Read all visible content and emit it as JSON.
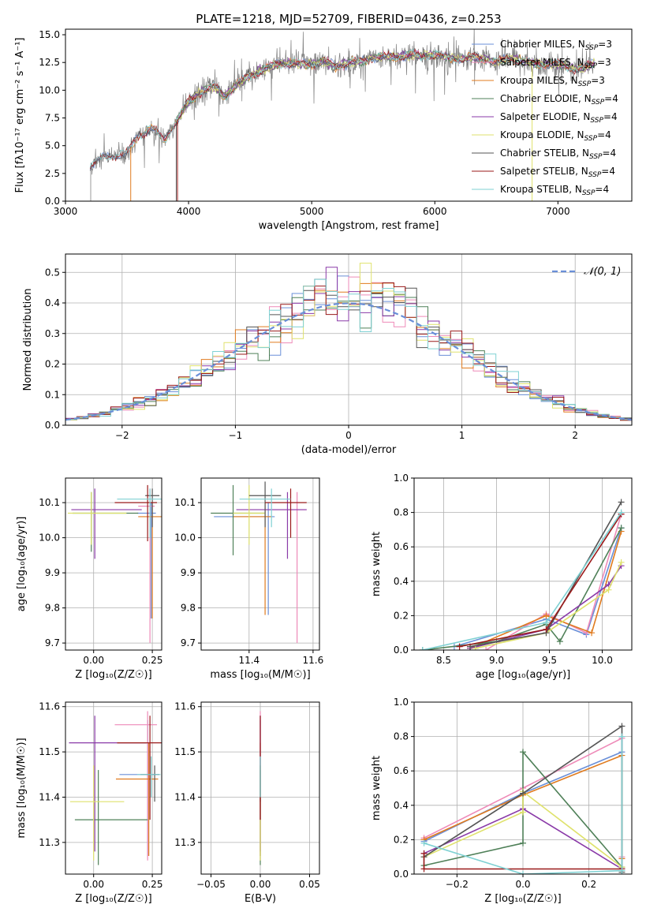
{
  "legend_spec": {
    "labels": [
      "Chabrier MILES",
      "Salpeter MILES",
      "Kroupa MILES",
      "Chabrier ELODIE",
      "Salpeter ELODIE",
      "Kroupa ELODIE",
      "Chabrier STELIB",
      "Salpeter STELIB",
      "Kroupa STELIB"
    ],
    "nssp": [
      "3",
      "3",
      "3",
      "4",
      "4",
      "4",
      "4",
      "4",
      "4"
    ],
    "prefix": "N",
    "sub": "SSP",
    "colors": [
      "#6a8fd8",
      "#ee8ab8",
      "#e07b1f",
      "#4f8058",
      "#8a3aa8",
      "#dfe26c",
      "#555555",
      "#9a1a1a",
      "#7fd1d3"
    ]
  },
  "chart_data": [
    {
      "id": "spectrum",
      "type": "line",
      "title": "PLATE=1218, MJD=52709, FIBERID=0436, z=0.253",
      "xlabel": "wavelength [Angstrom, rest frame]",
      "ylabel": "Flux [fλ10⁻¹⁷ erg cm⁻² s⁻¹ A⁻¹]",
      "xlim": [
        3000,
        7600
      ],
      "ylim": [
        0,
        15.5
      ],
      "xticks": [
        3000,
        4000,
        5000,
        6000,
        7000
      ],
      "yticks": [
        0.0,
        2.5,
        5.0,
        7.5,
        10.0,
        12.5,
        15.0
      ],
      "data_color": "#808080",
      "legend": "top-right",
      "continuum": [
        [
          3200,
          3.2
        ],
        [
          3300,
          3.9
        ],
        [
          3400,
          4.1
        ],
        [
          3500,
          4.3
        ],
        [
          3600,
          6.0
        ],
        [
          3700,
          6.6
        ],
        [
          3800,
          5.5
        ],
        [
          3900,
          7.2
        ],
        [
          4000,
          9.0
        ],
        [
          4100,
          9.8
        ],
        [
          4200,
          10.4
        ],
        [
          4300,
          9.4
        ],
        [
          4400,
          10.6
        ],
        [
          4500,
          11.3
        ],
        [
          4600,
          11.8
        ],
        [
          4700,
          12.3
        ],
        [
          4800,
          12.4
        ],
        [
          4900,
          12.4
        ],
        [
          5000,
          12.3
        ],
        [
          5100,
          12.6
        ],
        [
          5200,
          12.1
        ],
        [
          5300,
          12.5
        ],
        [
          5400,
          12.6
        ],
        [
          5500,
          12.9
        ],
        [
          5600,
          13.0
        ],
        [
          5700,
          13.0
        ],
        [
          5800,
          13.2
        ],
        [
          5900,
          13.1
        ],
        [
          6000,
          13.2
        ],
        [
          6100,
          13.0
        ],
        [
          6200,
          12.8
        ],
        [
          6300,
          13.0
        ],
        [
          6400,
          12.8
        ],
        [
          6500,
          12.5
        ],
        [
          6600,
          12.9
        ],
        [
          6700,
          12.6
        ],
        [
          6800,
          12.5
        ],
        [
          6900,
          12.3
        ],
        [
          7000,
          12.4
        ],
        [
          7100,
          12.0
        ],
        [
          7200,
          11.9
        ],
        [
          7300,
          12.4
        ]
      ]
    },
    {
      "id": "residuals",
      "type": "step",
      "xlabel": "(data-model)/error",
      "ylabel": "Normed distribution",
      "xlim": [
        -2.5,
        2.5
      ],
      "ylim": [
        0,
        0.56
      ],
      "xticks": [
        -2,
        -1,
        0,
        1,
        2
      ],
      "yticks": [
        0.0,
        0.1,
        0.2,
        0.3,
        0.4,
        0.5
      ],
      "grid": true,
      "legend": "top-right",
      "reference_label": "𝒩(0, 1)",
      "reference_color": "#6a8fd8",
      "bin_width": 0.1,
      "bin_start": -2.5
    },
    {
      "id": "z-age",
      "type": "errorbar",
      "xlabel": "Z [log₁₀(Z/Z☉)]",
      "ylabel": "age  [log₁₀(age/yr)]",
      "xlim": [
        -0.12,
        0.29
      ],
      "ylim": [
        9.68,
        10.17
      ],
      "xticks": [
        0.0,
        0.25
      ],
      "xticklabels": [
        "0.00",
        "0.25"
      ],
      "yticks": [
        9.7,
        9.8,
        9.9,
        10.0,
        10.1
      ],
      "grid": true,
      "points": [
        {
          "x": 0.245,
          "y": 10.07,
          "xerr": [
            0.06,
            0.02
          ],
          "yerr": [
            0.3,
            0.03
          ],
          "c": 0
        },
        {
          "x": 0.24,
          "y": 10.09,
          "xerr": [
            0.05,
            0.02
          ],
          "yerr": [
            0.39,
            0.05
          ],
          "c": 1
        },
        {
          "x": 0.25,
          "y": 10.06,
          "xerr": [
            0.06,
            0.04
          ],
          "yerr": [
            0.29,
            0.04
          ],
          "c": 2
        },
        {
          "x": -0.01,
          "y": 10.07,
          "xerr": [
            0.08,
            0.2
          ],
          "yerr": [
            0.11,
            0.06
          ],
          "c": 3
        },
        {
          "x": 0.005,
          "y": 10.08,
          "xerr": [
            0.1,
            0.2
          ],
          "yerr": [
            0.14,
            0.06
          ],
          "c": 4
        },
        {
          "x": -0.01,
          "y": 10.07,
          "xerr": [
            0.1,
            0.15
          ],
          "yerr": [
            0.09,
            0.06
          ],
          "c": 5
        },
        {
          "x": 0.25,
          "y": 10.12,
          "xerr": [
            0.03,
            0.03
          ],
          "yerr": [
            0.09,
            0.02
          ],
          "c": 6
        },
        {
          "x": 0.23,
          "y": 10.1,
          "xerr": [
            0.14,
            0.04
          ],
          "yerr": [
            0.11,
            0.05
          ],
          "c": 7
        },
        {
          "x": 0.24,
          "y": 10.11,
          "xerr": [
            0.14,
            0.05
          ],
          "yerr": [
            0.11,
            0.03
          ],
          "c": 8
        }
      ]
    },
    {
      "id": "mass-age",
      "type": "errorbar",
      "xlabel": "mass [log₁₀(M/M☉)]",
      "ylabel": "",
      "xlim": [
        11.25,
        11.62
      ],
      "ylim": [
        9.68,
        10.17
      ],
      "xticks": [
        11.4,
        11.6
      ],
      "xticklabels": [
        "11.4",
        "11.6"
      ],
      "yticks": [
        9.7,
        9.8,
        9.9,
        10.0,
        10.1
      ],
      "grid": true,
      "points": [
        {
          "x": 11.46,
          "y": 10.06,
          "xerr": [
            0.17,
            0.02
          ],
          "yerr": [
            0.28,
            0.04
          ],
          "c": 0
        },
        {
          "x": 11.55,
          "y": 10.08,
          "xerr": [
            0.1,
            0.03
          ],
          "yerr": [
            0.38,
            0.05
          ],
          "c": 1
        },
        {
          "x": 11.45,
          "y": 10.06,
          "xerr": [
            0.1,
            0.02
          ],
          "yerr": [
            0.28,
            0.04
          ],
          "c": 2
        },
        {
          "x": 11.35,
          "y": 10.07,
          "xerr": [
            0.07,
            0.1
          ],
          "yerr": [
            0.12,
            0.08
          ],
          "c": 3
        },
        {
          "x": 11.52,
          "y": 10.08,
          "xerr": [
            0.16,
            0.06
          ],
          "yerr": [
            0.14,
            0.05
          ],
          "c": 4
        },
        {
          "x": 11.4,
          "y": 10.07,
          "xerr": [
            0.05,
            0.05
          ],
          "yerr": [
            0.09,
            0.08
          ],
          "c": 5
        },
        {
          "x": 11.45,
          "y": 10.12,
          "xerr": [
            0.05,
            0.05
          ],
          "yerr": [
            0.09,
            0.04
          ],
          "c": 6
        },
        {
          "x": 11.53,
          "y": 10.1,
          "xerr": [
            0.08,
            0.05
          ],
          "yerr": [
            0.1,
            0.04
          ],
          "c": 7
        },
        {
          "x": 11.47,
          "y": 10.11,
          "xerr": [
            0.1,
            0.06
          ],
          "yerr": [
            0.08,
            0.03
          ],
          "c": 8
        }
      ]
    },
    {
      "id": "age-weight",
      "type": "line",
      "xlabel": "age  [log₁₀(age/yr)]",
      "ylabel": "mass weight",
      "xlim": [
        8.22,
        10.28
      ],
      "ylim": [
        0,
        1.0
      ],
      "xticks": [
        8.5,
        9.0,
        9.5,
        10.0
      ],
      "xticklabels": [
        "8.5",
        "9.0",
        "9.5",
        "10.0"
      ],
      "yticks": [
        0.0,
        0.2,
        0.4,
        0.6,
        0.8,
        1.0
      ],
      "grid": true,
      "series": [
        {
          "c": 0,
          "x": [
            8.6,
            9.47,
            9.85,
            10.18
          ],
          "y": [
            0.02,
            0.18,
            0.09,
            0.71
          ]
        },
        {
          "c": 1,
          "x": [
            8.9,
            9.47,
            9.85,
            10.18
          ],
          "y": [
            0.0,
            0.21,
            0.1,
            0.79
          ]
        },
        {
          "c": 2,
          "x": [
            8.75,
            9.47,
            9.9,
            10.18
          ],
          "y": [
            0.01,
            0.2,
            0.1,
            0.69
          ]
        },
        {
          "c": 3,
          "x": [
            8.3,
            9.0,
            9.47,
            9.6,
            10.18
          ],
          "y": [
            0.0,
            0.05,
            0.15,
            0.05,
            0.71
          ]
        },
        {
          "c": 4,
          "x": [
            8.75,
            9.47,
            10.06,
            10.18
          ],
          "y": [
            0.01,
            0.12,
            0.38,
            0.49
          ]
        },
        {
          "c": 5,
          "x": [
            8.8,
            9.47,
            10.06,
            10.18
          ],
          "y": [
            0.01,
            0.1,
            0.35,
            0.51
          ]
        },
        {
          "c": 6,
          "x": [
            8.75,
            9.47,
            10.18
          ],
          "y": [
            0.02,
            0.1,
            0.86
          ]
        },
        {
          "c": 7,
          "x": [
            8.65,
            9.47,
            10.18
          ],
          "y": [
            0.02,
            0.12,
            0.79
          ]
        },
        {
          "c": 8,
          "x": [
            8.3,
            9.47,
            10.18
          ],
          "y": [
            0.0,
            0.16,
            0.8
          ]
        }
      ]
    },
    {
      "id": "z-mass",
      "type": "errorbar",
      "xlabel": "Z [log₁₀(Z/Z☉)]",
      "ylabel": "mass [log₁₀(M/M☉)]",
      "xlim": [
        -0.12,
        0.29
      ],
      "ylim": [
        11.23,
        11.61
      ],
      "xticks": [
        0.0,
        0.25
      ],
      "xticklabels": [
        "0.00",
        "0.25"
      ],
      "yticks": [
        11.3,
        11.4,
        11.5,
        11.6
      ],
      "grid": true,
      "points": [
        {
          "x": 0.23,
          "y": 11.45,
          "xerr": [
            0.12,
            0.05
          ],
          "yerr": [
            0.18,
            0.12
          ],
          "c": 0
        },
        {
          "x": 0.23,
          "y": 11.56,
          "xerr": [
            0.14,
            0.04
          ],
          "yerr": [
            0.3,
            0.03
          ],
          "c": 1
        },
        {
          "x": 0.235,
          "y": 11.44,
          "xerr": [
            0.14,
            0.04
          ],
          "yerr": [
            0.17,
            0.08
          ],
          "c": 2
        },
        {
          "x": 0.02,
          "y": 11.35,
          "xerr": [
            0.1,
            0.21
          ],
          "yerr": [
            0.1,
            0.11
          ],
          "c": 3
        },
        {
          "x": 0.005,
          "y": 11.52,
          "xerr": [
            0.11,
            0.22
          ],
          "yerr": [
            0.24,
            0.06
          ],
          "c": 4
        },
        {
          "x": 0.0,
          "y": 11.39,
          "xerr": [
            0.1,
            0.13
          ],
          "yerr": [
            0.13,
            0.08
          ],
          "c": 5
        },
        {
          "x": 0.26,
          "y": 11.45,
          "xerr": [
            0.06,
            0.02
          ],
          "yerr": [
            0.06,
            0.02
          ],
          "c": 6
        },
        {
          "x": 0.24,
          "y": 11.52,
          "xerr": [
            0.14,
            0.05
          ],
          "yerr": [
            0.17,
            0.06
          ],
          "c": 7
        },
        {
          "x": 0.245,
          "y": 11.45,
          "xerr": [
            0.06,
            0.04
          ],
          "yerr": [
            0.05,
            0.04
          ],
          "c": 8
        }
      ]
    },
    {
      "id": "ebv-mass",
      "type": "errorbar",
      "xlabel": "E(B-V)",
      "ylabel": "",
      "xlim": [
        -0.06,
        0.06
      ],
      "ylim": [
        11.23,
        11.61
      ],
      "xticks": [
        -0.05,
        0.0,
        0.05
      ],
      "xticklabels": [
        "−0.05",
        "0.00",
        "0.05"
      ],
      "yticks": [
        11.3,
        11.4,
        11.5,
        11.6
      ],
      "grid": true,
      "points": [
        {
          "x": 0,
          "y": 11.45,
          "xerr": [
            0,
            0
          ],
          "yerr": [
            0.18,
            0.12
          ],
          "c": 0
        },
        {
          "x": 0,
          "y": 11.56,
          "xerr": [
            0,
            0
          ],
          "yerr": [
            0.3,
            0.03
          ],
          "c": 1
        },
        {
          "x": 0,
          "y": 11.44,
          "xerr": [
            0,
            0
          ],
          "yerr": [
            0.17,
            0.08
          ],
          "c": 2
        },
        {
          "x": 0,
          "y": 11.35,
          "xerr": [
            0,
            0
          ],
          "yerr": [
            0.1,
            0.11
          ],
          "c": 3
        },
        {
          "x": 0,
          "y": 11.52,
          "xerr": [
            0,
            0
          ],
          "yerr": [
            0.24,
            0.06
          ],
          "c": 4
        },
        {
          "x": 0,
          "y": 11.39,
          "xerr": [
            0,
            0
          ],
          "yerr": [
            0.13,
            0.08
          ],
          "c": 5
        },
        {
          "x": 0,
          "y": 11.45,
          "xerr": [
            0,
            0
          ],
          "yerr": [
            0.06,
            0.02
          ],
          "c": 6
        },
        {
          "x": 0,
          "y": 11.52,
          "xerr": [
            0,
            0
          ],
          "yerr": [
            0.17,
            0.06
          ],
          "c": 7
        },
        {
          "x": 0,
          "y": 11.45,
          "xerr": [
            0,
            0
          ],
          "yerr": [
            0.05,
            0.04
          ],
          "c": 8
        }
      ]
    },
    {
      "id": "z-weight",
      "type": "line",
      "xlabel": "Z [log₁₀(Z/Z☉)]",
      "ylabel": "mass weight",
      "xlim": [
        -0.33,
        0.33
      ],
      "ylim": [
        0,
        1.0
      ],
      "xticks": [
        -0.2,
        0.0,
        0.2
      ],
      "xticklabels": [
        "−0.2",
        "0.0",
        "0.2"
      ],
      "yticks": [
        0.0,
        0.2,
        0.4,
        0.6,
        0.8,
        1.0
      ],
      "grid": true,
      "series": [
        {
          "c": 0,
          "x": [
            -0.3,
            0.0,
            0.3,
            0.3
          ],
          "y": [
            0.19,
            0.47,
            0.71,
            0.03
          ]
        },
        {
          "c": 1,
          "x": [
            -0.3,
            0.0,
            0.3,
            0.3
          ],
          "y": [
            0.21,
            0.5,
            0.79,
            0.1
          ]
        },
        {
          "c": 2,
          "x": [
            -0.3,
            0.0,
            0.3,
            0.3
          ],
          "y": [
            0.2,
            0.46,
            0.69,
            0.09
          ]
        },
        {
          "c": 3,
          "x": [
            -0.3,
            0.0,
            0.0,
            0.3,
            0.3
          ],
          "y": [
            0.05,
            0.18,
            0.71,
            0.04,
            0.02
          ]
        },
        {
          "c": 4,
          "x": [
            -0.3,
            0.0,
            0.3
          ],
          "y": [
            0.12,
            0.38,
            0.03
          ]
        },
        {
          "c": 5,
          "x": [
            -0.3,
            0.0,
            0.0,
            0.3
          ],
          "y": [
            0.1,
            0.36,
            0.48,
            0.04
          ]
        },
        {
          "c": 6,
          "x": [
            -0.3,
            0.0,
            0.3,
            0.3
          ],
          "y": [
            0.1,
            0.47,
            0.86,
            0.01
          ]
        },
        {
          "c": 7,
          "x": [
            -0.3,
            -0.3,
            0.3
          ],
          "y": [
            0.12,
            0.03,
            0.03
          ]
        },
        {
          "c": 8,
          "x": [
            -0.3,
            0.0,
            0.3,
            0.3
          ],
          "y": [
            0.18,
            0.0,
            0.02,
            0.8
          ]
        }
      ]
    }
  ]
}
